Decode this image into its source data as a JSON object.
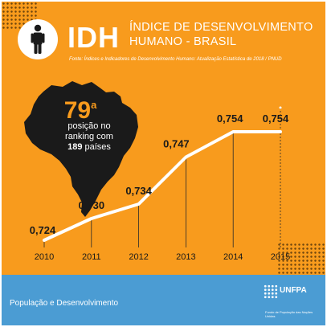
{
  "header": {
    "acronym": "IDH",
    "title_line1": "ÍNDICE DE DESENVOLVIMENTO",
    "title_line2": "HUMANO - BRASIL",
    "source": "Fonte: Índices e Indicadores de Desenvolvimento Humano: Atualização Estatística de 2018 / PNUD",
    "icon": "person-icon"
  },
  "callout": {
    "rank": "79",
    "rank_suffix": "a",
    "line1": "posição no",
    "line2": "ranking com",
    "count": "189",
    "count_suffix": "países",
    "map": "brazil-map-icon"
  },
  "footer": {
    "label": "População e Desenvolvimento",
    "logo": "UNFPA",
    "logo_subtitle": "Fundo de População das Nações Unidas"
  },
  "colors": {
    "background": "#F89B1D",
    "footer": "#4B9CD3",
    "line": "#ffffff",
    "map": "#1a1a1a"
  },
  "chart_data": {
    "type": "line",
    "title": "",
    "xlabel": "",
    "ylabel": "",
    "x": [
      "2010",
      "2011",
      "2012",
      "2013",
      "2014",
      "2015"
    ],
    "series": [
      {
        "values": [
          0.724,
          0.73,
          0.734,
          0.747,
          0.754,
          0.754
        ],
        "labels": [
          "0,724",
          "0,730",
          "0,734",
          "0,747",
          "0,754",
          "0,754"
        ]
      }
    ],
    "ylim": [
      0.715,
      0.76
    ],
    "grid": "vertical",
    "legend": "none"
  }
}
